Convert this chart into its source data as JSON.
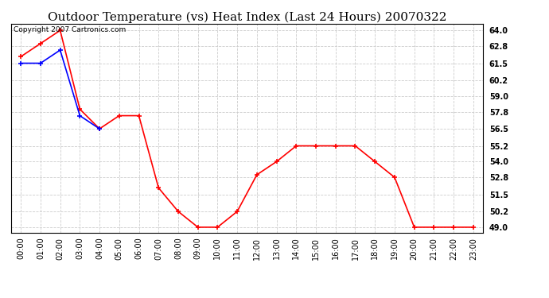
{
  "title": "Outdoor Temperature (vs) Heat Index (Last 24 Hours) 20070322",
  "copyright": "Copyright 2007 Cartronics.com",
  "x_labels": [
    "00:00",
    "01:00",
    "02:00",
    "03:00",
    "04:00",
    "05:00",
    "06:00",
    "07:00",
    "08:00",
    "09:00",
    "10:00",
    "11:00",
    "12:00",
    "13:00",
    "14:00",
    "15:00",
    "16:00",
    "17:00",
    "18:00",
    "19:00",
    "20:00",
    "21:00",
    "22:00",
    "23:00"
  ],
  "y_ticks": [
    49.0,
    50.2,
    51.5,
    52.8,
    54.0,
    55.2,
    56.5,
    57.8,
    59.0,
    60.2,
    61.5,
    62.8,
    64.0
  ],
  "y_tick_labels": [
    "49.0",
    "50.2",
    "51.5",
    "52.8",
    "54.0",
    "55.2",
    "56.5",
    "57.8",
    "59.0",
    "60.2",
    "61.5",
    "62.8",
    "64.0"
  ],
  "ylim": [
    48.6,
    64.5
  ],
  "red_data": [
    62.0,
    63.0,
    64.0,
    58.0,
    56.5,
    57.5,
    57.5,
    52.0,
    50.2,
    49.0,
    49.0,
    50.2,
    53.0,
    54.0,
    55.2,
    55.2,
    55.2,
    55.2,
    54.0,
    52.8,
    49.0,
    49.0,
    49.0,
    49.0
  ],
  "blue_data": [
    61.5,
    61.5,
    62.5,
    57.5,
    56.5,
    null,
    null,
    null,
    null,
    null,
    null,
    null,
    null,
    null,
    null,
    null,
    null,
    null,
    null,
    null,
    null,
    null,
    null,
    null
  ],
  "red_color": "#ff0000",
  "blue_color": "#0000ff",
  "bg_color": "#ffffff",
  "grid_color": "#cccccc",
  "title_fontsize": 11,
  "tick_fontsize": 7,
  "copyright_fontsize": 6.5
}
